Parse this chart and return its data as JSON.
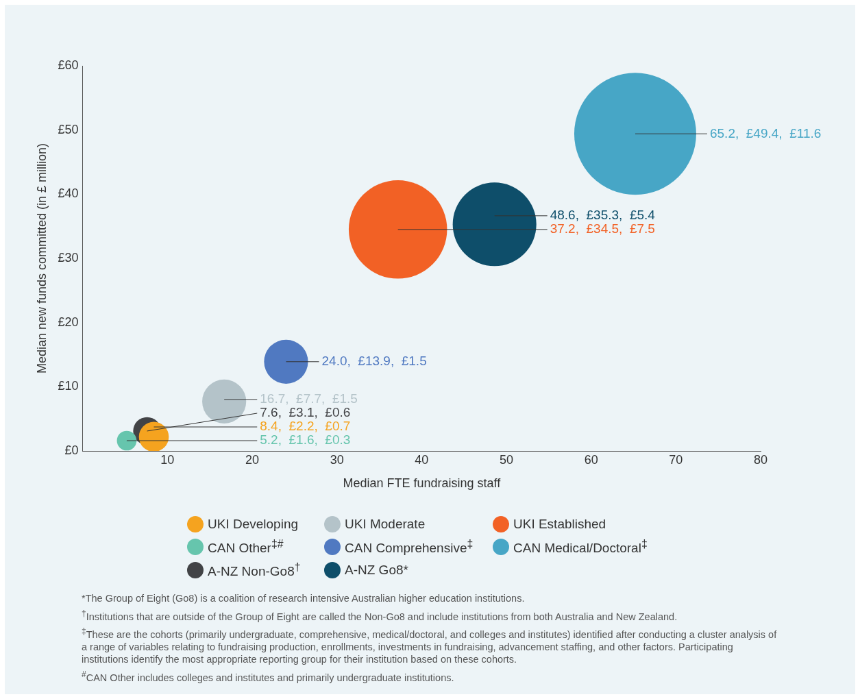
{
  "chart_data": {
    "type": "bubble",
    "xlabel": "Median FTE fundraising staff",
    "ylabel": "Median new funds committed (in £ million)",
    "xlim": [
      0,
      80
    ],
    "xticks": [
      10,
      20,
      30,
      40,
      50,
      60,
      70,
      80
    ],
    "ylim": [
      0,
      60
    ],
    "yticks": [
      {
        "value": 0,
        "label": "£0"
      },
      {
        "value": 10,
        "label": "£10"
      },
      {
        "value": 20,
        "label": "£20"
      },
      {
        "value": 30,
        "label": "£30"
      },
      {
        "value": 40,
        "label": "£40"
      },
      {
        "value": 50,
        "label": "£50"
      },
      {
        "value": 60,
        "label": "£60"
      }
    ],
    "grid": false,
    "legend": "bottom",
    "series": [
      {
        "name": "UKI Developing",
        "color": "#f5a31f",
        "x": [
          8.4
        ],
        "values": [
          2.2
        ],
        "sizes": [
          0.06
        ],
        "value_labels": [
          "8.4,  £2.2,  £0.7"
        ]
      },
      {
        "name": "UKI Moderate",
        "color": "#b4c3c9",
        "x": [
          16.7
        ],
        "values": [
          7.7
        ],
        "sizes": [
          0.13
        ],
        "value_labels": [
          "16.7,  £7.7,  £1.5"
        ]
      },
      {
        "name": "UKI Established",
        "color": "#f26125",
        "x": [
          37.2
        ],
        "values": [
          34.5
        ],
        "sizes": [
          0.65
        ],
        "value_labels": [
          "37.2,  £34.5,  £7.5"
        ]
      },
      {
        "name": "CAN Other$^{‡#}$",
        "color": "#66c5ad",
        "x": [
          5.2
        ],
        "values": [
          1.6
        ],
        "sizes": [
          0.026
        ],
        "value_labels": [
          "5.2,  £1.6,  £0.3"
        ]
      },
      {
        "name": "CAN Comprehensive$^{‡}$",
        "color": "#5079c1",
        "x": [
          24.0
        ],
        "values": [
          13.9
        ],
        "sizes": [
          0.13
        ],
        "value_labels": [
          "24.0,  £13.9,  £1.5"
        ]
      },
      {
        "name": "CAN Medical/Doctoral$^{‡}$",
        "color": "#47a6c6",
        "x": [
          65.2
        ],
        "values": [
          49.4
        ],
        "sizes": [
          1
        ],
        "value_labels": [
          "65.2,  £49.4,  £11.6"
        ]
      },
      {
        "name": "A-NZ Non-Go8$^{†}$",
        "color": "#424346",
        "x": [
          7.6
        ],
        "values": [
          3.1
        ],
        "sizes": [
          0.052
        ],
        "value_labels": [
          "7.6,  £3.1,  £0.6"
        ]
      },
      {
        "name": "A-NZ Go8*",
        "color": "#0e4e6a",
        "x": [
          48.6
        ],
        "values": [
          35.3
        ],
        "sizes": [
          0.47
        ],
        "value_labels": [
          "48.6,  £35.3,  £5.4"
        ]
      }
    ],
    "annotations": [
      "*The Group of Eight (Go8) is a coalition of research intensive Australian higher education institutions.",
      "$^{†}$Institutions that are outside of the Group of Eight are called the Non-Go8 and include institutions from both Australia and New Zealand.",
      "$^{‡}$These are the cohorts (primarily undergraduate, comprehensive, medical/doctoral, and colleges and institutes) identified after conducting a cluster analysis of a range of variables relating to fundraising production, enrollments, investments in fundraising, advancement staffing, and other factors. Participating institutions identify the most appropriate reporting group for their institution based on these cohorts.",
      "$^{#}$CAN Other includes colleges and institutes and primarily undergraduate institutions."
    ]
  }
}
